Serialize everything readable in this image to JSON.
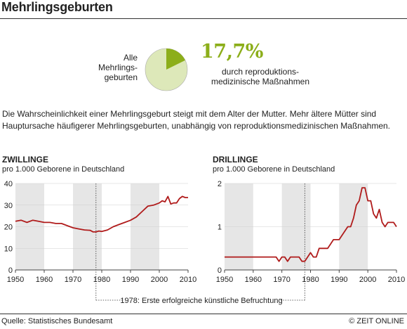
{
  "title": "Mehrlingsgeburten",
  "pie": {
    "label": "Alle\nMehrlings-\ngeburten",
    "percent": "17,7%",
    "fraction": 0.177,
    "caption": "durch reproduktions-\nmedizinische Maßnahmen",
    "colors": {
      "accent": "#8cae1a",
      "base": "#dde8b9"
    }
  },
  "intro_text": "Die Wahrscheinlichkeit einer Mehrlingsgeburt steigt mit dem Alter der Mutter. Mehr ältere Mütter sind Hauptursache häufigerer Mehrlingsgeburten, unabhängig von reproduktionsmedizinischen Maßnahmen.",
  "annotation": "1978: Erste erfolgreiche künstliche Befruchtung",
  "source": "Quelle: Statistisches Bundesamt",
  "credit": "© ZEIT ONLINE",
  "chart_data": [
    {
      "type": "line",
      "title": "ZWILLINGE",
      "subtitle": "pro 1.000 Geborene in Deutschland",
      "x": [
        1950,
        1952,
        1954,
        1956,
        1958,
        1960,
        1962,
        1964,
        1966,
        1968,
        1970,
        1972,
        1974,
        1976,
        1977,
        1978,
        1979,
        1980,
        1982,
        1984,
        1986,
        1988,
        1990,
        1992,
        1994,
        1996,
        1998,
        2000,
        2001,
        2002,
        2003,
        2004,
        2005,
        2006,
        2007,
        2008,
        2009,
        2010
      ],
      "series": [
        {
          "values": [
            22.5,
            23,
            22,
            23,
            22.5,
            22,
            22,
            21.5,
            21.5,
            20.5,
            19.5,
            19,
            18.5,
            18.3,
            17.6,
            17.6,
            18,
            17.8,
            18.5,
            20,
            21,
            22,
            23,
            24.5,
            27,
            29.5,
            30,
            31,
            32,
            31.5,
            34,
            30.5,
            31,
            31,
            33,
            34,
            33.5,
            33.5
          ]
        }
      ],
      "xlim": [
        1950,
        2010
      ],
      "ylim": [
        0,
        40
      ],
      "xticks": [
        "1950",
        "1960",
        "1970",
        "1980",
        "1990",
        "2000",
        "2010"
      ],
      "yticks": [
        "0",
        "10",
        "20",
        "30",
        "40"
      ],
      "shaded_decades": [
        [
          1950,
          1960
        ],
        [
          1970,
          1980
        ],
        [
          1990,
          2000
        ]
      ],
      "marker_year": 1978,
      "line_color": "#b01b1b"
    },
    {
      "type": "line",
      "title": "DRILLINGE",
      "subtitle": "pro 1.000 Geborene in Deutschland",
      "x": [
        1950,
        1968,
        1969,
        1970,
        1971,
        1972,
        1973,
        1974,
        1975,
        1976,
        1977,
        1978,
        1979,
        1980,
        1981,
        1982,
        1983,
        1984,
        1985,
        1986,
        1987,
        1988,
        1989,
        1990,
        1991,
        1992,
        1993,
        1994,
        1995,
        1996,
        1997,
        1998,
        1999,
        2000,
        2001,
        2002,
        2003,
        2004,
        2005,
        2006,
        2007,
        2008,
        2009,
        2010
      ],
      "series": [
        {
          "values": [
            0.3,
            0.3,
            0.2,
            0.3,
            0.3,
            0.2,
            0.3,
            0.3,
            0.3,
            0.3,
            0.2,
            0.2,
            0.3,
            0.4,
            0.3,
            0.3,
            0.5,
            0.5,
            0.5,
            0.5,
            0.6,
            0.7,
            0.7,
            0.7,
            0.8,
            0.9,
            1.0,
            1.0,
            1.2,
            1.5,
            1.6,
            1.9,
            1.9,
            1.6,
            1.6,
            1.3,
            1.2,
            1.4,
            1.1,
            1.0,
            1.1,
            1.1,
            1.1,
            1.0
          ]
        }
      ],
      "xlim": [
        1950,
        2010
      ],
      "ylim": [
        0,
        2
      ],
      "xticks": [
        "1950",
        "1960",
        "1970",
        "1980",
        "1990",
        "2000",
        "2010"
      ],
      "yticks": [
        "0",
        "1",
        "2"
      ],
      "shaded_decades": [
        [
          1950,
          1960
        ],
        [
          1970,
          1980
        ],
        [
          1990,
          2000
        ]
      ],
      "marker_year": 1978,
      "line_color": "#b01b1b"
    }
  ]
}
